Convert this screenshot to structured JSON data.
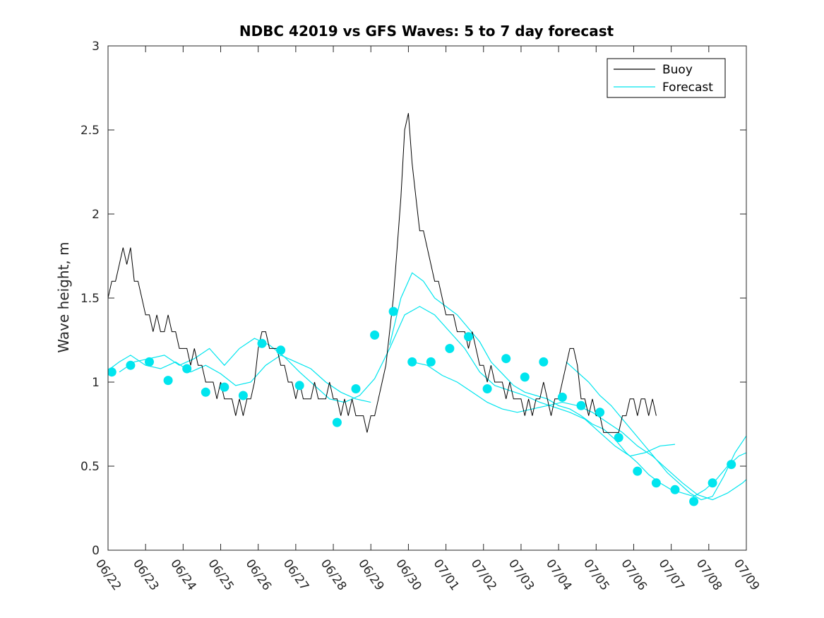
{
  "chart_data": {
    "type": "line",
    "title": "NDBC 42019 vs GFS Waves: 5 to 7 day forecast",
    "xlabel": "",
    "ylabel": "Wave height, m",
    "xlim": [
      "06/22",
      "07/09"
    ],
    "ylim": [
      0,
      3
    ],
    "x_tick_labels": [
      "06/22",
      "06/23",
      "06/24",
      "06/25",
      "06/26",
      "06/27",
      "06/28",
      "06/29",
      "06/30",
      "07/01",
      "07/02",
      "07/03",
      "07/04",
      "07/05",
      "07/06",
      "07/07",
      "07/08",
      "07/09"
    ],
    "y_tick_labels": [
      "0",
      "0.5",
      "1",
      "1.5",
      "2",
      "2.5",
      "3"
    ],
    "y_ticks": [
      0,
      0.5,
      1,
      1.5,
      2,
      2.5,
      3
    ],
    "grid": false,
    "legend": {
      "placement": "top-right",
      "entries": [
        {
          "label": "Buoy",
          "color": "#000000"
        },
        {
          "label": "Forecast",
          "color": "#00e5ee"
        }
      ]
    },
    "colors": {
      "buoy": "#000000",
      "forecast": "#00e5ee",
      "axes": "#262626"
    },
    "buoy": {
      "name": "Buoy",
      "points": [
        [
          0.0,
          1.5
        ],
        [
          0.1,
          1.6
        ],
        [
          0.2,
          1.6
        ],
        [
          0.3,
          1.7
        ],
        [
          0.4,
          1.8
        ],
        [
          0.5,
          1.7
        ],
        [
          0.6,
          1.8
        ],
        [
          0.7,
          1.6
        ],
        [
          0.8,
          1.6
        ],
        [
          0.9,
          1.5
        ],
        [
          1.0,
          1.4
        ],
        [
          1.1,
          1.4
        ],
        [
          1.2,
          1.3
        ],
        [
          1.3,
          1.4
        ],
        [
          1.4,
          1.3
        ],
        [
          1.5,
          1.3
        ],
        [
          1.6,
          1.4
        ],
        [
          1.7,
          1.3
        ],
        [
          1.8,
          1.3
        ],
        [
          1.9,
          1.2
        ],
        [
          2.0,
          1.2
        ],
        [
          2.1,
          1.2
        ],
        [
          2.2,
          1.1
        ],
        [
          2.3,
          1.2
        ],
        [
          2.4,
          1.1
        ],
        [
          2.5,
          1.1
        ],
        [
          2.6,
          1.0
        ],
        [
          2.7,
          1.0
        ],
        [
          2.8,
          1.0
        ],
        [
          2.9,
          0.9
        ],
        [
          3.0,
          1.0
        ],
        [
          3.1,
          0.9
        ],
        [
          3.2,
          0.9
        ],
        [
          3.3,
          0.9
        ],
        [
          3.4,
          0.8
        ],
        [
          3.5,
          0.9
        ],
        [
          3.6,
          0.8
        ],
        [
          3.7,
          0.9
        ],
        [
          3.8,
          0.9
        ],
        [
          3.9,
          1.0
        ],
        [
          4.0,
          1.2
        ],
        [
          4.1,
          1.3
        ],
        [
          4.2,
          1.3
        ],
        [
          4.3,
          1.2
        ],
        [
          4.4,
          1.2
        ],
        [
          4.5,
          1.2
        ],
        [
          4.6,
          1.1
        ],
        [
          4.7,
          1.1
        ],
        [
          4.8,
          1.0
        ],
        [
          4.9,
          1.0
        ],
        [
          5.0,
          0.9
        ],
        [
          5.1,
          1.0
        ],
        [
          5.2,
          0.9
        ],
        [
          5.3,
          0.9
        ],
        [
          5.4,
          0.9
        ],
        [
          5.5,
          1.0
        ],
        [
          5.6,
          0.9
        ],
        [
          5.7,
          0.9
        ],
        [
          5.8,
          0.9
        ],
        [
          5.9,
          1.0
        ],
        [
          6.0,
          0.9
        ],
        [
          6.1,
          0.9
        ],
        [
          6.2,
          0.8
        ],
        [
          6.3,
          0.9
        ],
        [
          6.4,
          0.8
        ],
        [
          6.5,
          0.9
        ],
        [
          6.6,
          0.8
        ],
        [
          6.7,
          0.8
        ],
        [
          6.8,
          0.8
        ],
        [
          6.9,
          0.7
        ],
        [
          7.0,
          0.8
        ],
        [
          7.1,
          0.8
        ],
        [
          7.2,
          0.9
        ],
        [
          7.3,
          1.0
        ],
        [
          7.4,
          1.1
        ],
        [
          7.5,
          1.3
        ],
        [
          7.6,
          1.5
        ],
        [
          7.7,
          1.8
        ],
        [
          7.8,
          2.1
        ],
        [
          7.9,
          2.5
        ],
        [
          8.0,
          2.6
        ],
        [
          8.1,
          2.3
        ],
        [
          8.2,
          2.1
        ],
        [
          8.3,
          1.9
        ],
        [
          8.4,
          1.9
        ],
        [
          8.5,
          1.8
        ],
        [
          8.6,
          1.7
        ],
        [
          8.7,
          1.6
        ],
        [
          8.8,
          1.6
        ],
        [
          8.9,
          1.5
        ],
        [
          9.0,
          1.4
        ],
        [
          9.1,
          1.4
        ],
        [
          9.2,
          1.4
        ],
        [
          9.3,
          1.3
        ],
        [
          9.4,
          1.3
        ],
        [
          9.5,
          1.3
        ],
        [
          9.6,
          1.2
        ],
        [
          9.7,
          1.3
        ],
        [
          9.8,
          1.2
        ],
        [
          9.9,
          1.1
        ],
        [
          10.0,
          1.1
        ],
        [
          10.1,
          1.0
        ],
        [
          10.2,
          1.1
        ],
        [
          10.3,
          1.0
        ],
        [
          10.4,
          1.0
        ],
        [
          10.5,
          1.0
        ],
        [
          10.6,
          0.9
        ],
        [
          10.7,
          1.0
        ],
        [
          10.8,
          0.9
        ],
        [
          10.9,
          0.9
        ],
        [
          11.0,
          0.9
        ],
        [
          11.1,
          0.8
        ],
        [
          11.2,
          0.9
        ],
        [
          11.3,
          0.8
        ],
        [
          11.4,
          0.9
        ],
        [
          11.5,
          0.9
        ],
        [
          11.6,
          1.0
        ],
        [
          11.7,
          0.9
        ],
        [
          11.8,
          0.8
        ],
        [
          11.9,
          0.9
        ],
        [
          12.0,
          0.9
        ],
        [
          12.1,
          1.0
        ],
        [
          12.2,
          1.1
        ],
        [
          12.3,
          1.2
        ],
        [
          12.4,
          1.2
        ],
        [
          12.5,
          1.1
        ],
        [
          12.6,
          0.9
        ],
        [
          12.7,
          0.9
        ],
        [
          12.8,
          0.8
        ],
        [
          12.9,
          0.9
        ],
        [
          13.0,
          0.8
        ],
        [
          13.1,
          0.8
        ],
        [
          13.2,
          0.7
        ],
        [
          13.3,
          0.7
        ],
        [
          13.4,
          0.7
        ],
        [
          13.5,
          0.7
        ],
        [
          13.6,
          0.7
        ],
        [
          13.7,
          0.8
        ],
        [
          13.8,
          0.8
        ],
        [
          13.9,
          0.9
        ],
        [
          14.0,
          0.9
        ],
        [
          14.1,
          0.8
        ],
        [
          14.2,
          0.9
        ],
        [
          14.3,
          0.9
        ],
        [
          14.4,
          0.8
        ],
        [
          14.5,
          0.9
        ],
        [
          14.6,
          0.8
        ]
      ]
    },
    "forecast_series": [
      {
        "name": "Forecast",
        "points": [
          [
            0,
            1.07
          ],
          [
            0.3,
            1.12
          ],
          [
            0.6,
            1.16
          ],
          [
            1.0,
            1.1
          ],
          [
            1.4,
            1.08
          ],
          [
            1.8,
            1.12
          ],
          [
            2.2,
            1.06
          ],
          [
            2.6,
            1.1
          ],
          [
            3.0,
            1.05
          ],
          [
            3.4,
            0.98
          ],
          [
            3.8,
            1.0
          ],
          [
            4.2,
            1.1
          ],
          [
            4.6,
            1.16
          ],
          [
            5.0,
            1.12
          ],
          [
            5.4,
            1.08
          ],
          [
            5.8,
            1.0
          ],
          [
            6.2,
            0.94
          ],
          [
            6.6,
            0.9
          ],
          [
            7.0,
            0.88
          ]
        ]
      },
      {
        "name": "Forecast",
        "points": [
          [
            0.3,
            1.06
          ],
          [
            0.7,
            1.12
          ],
          [
            1.1,
            1.14
          ],
          [
            1.5,
            1.16
          ],
          [
            1.9,
            1.1
          ],
          [
            2.3,
            1.14
          ],
          [
            2.7,
            1.2
          ],
          [
            3.1,
            1.1
          ],
          [
            3.5,
            1.2
          ],
          [
            3.9,
            1.26
          ],
          [
            4.3,
            1.22
          ],
          [
            4.7,
            1.15
          ],
          [
            5.1,
            1.06
          ],
          [
            5.5,
            0.98
          ],
          [
            5.9,
            0.9
          ],
          [
            6.3,
            0.88
          ],
          [
            6.7,
            0.92
          ],
          [
            7.1,
            1.02
          ],
          [
            7.5,
            1.2
          ],
          [
            7.9,
            1.4
          ],
          [
            8.3,
            1.45
          ],
          [
            8.7,
            1.4
          ],
          [
            9.1,
            1.3
          ],
          [
            9.5,
            1.2
          ],
          [
            9.9,
            1.06
          ],
          [
            10.3,
            0.98
          ],
          [
            10.7,
            0.95
          ],
          [
            11.1,
            0.92
          ],
          [
            11.5,
            0.88
          ],
          [
            11.9,
            0.85
          ],
          [
            12.3,
            0.82
          ],
          [
            12.7,
            0.78
          ],
          [
            13.1,
            0.7
          ],
          [
            13.5,
            0.62
          ],
          [
            13.9,
            0.56
          ],
          [
            14.3,
            0.58
          ],
          [
            14.7,
            0.62
          ],
          [
            15.1,
            0.63
          ]
        ]
      },
      {
        "name": "Forecast",
        "points": [
          [
            7.5,
            1.22
          ],
          [
            7.8,
            1.5
          ],
          [
            8.1,
            1.65
          ],
          [
            8.4,
            1.6
          ],
          [
            8.7,
            1.5
          ],
          [
            9.0,
            1.45
          ],
          [
            9.3,
            1.4
          ],
          [
            9.6,
            1.32
          ],
          [
            9.9,
            1.24
          ],
          [
            10.2,
            1.12
          ],
          [
            10.5,
            1.05
          ],
          [
            10.8,
            0.98
          ],
          [
            11.1,
            0.94
          ],
          [
            11.4,
            0.92
          ],
          [
            11.7,
            0.9
          ],
          [
            12.0,
            0.86
          ],
          [
            12.3,
            0.84
          ],
          [
            12.6,
            0.8
          ],
          [
            12.9,
            0.75
          ],
          [
            13.2,
            0.72
          ],
          [
            13.5,
            0.66
          ],
          [
            13.8,
            0.58
          ],
          [
            14.1,
            0.52
          ],
          [
            14.4,
            0.45
          ],
          [
            14.7,
            0.4
          ],
          [
            15.0,
            0.36
          ],
          [
            15.3,
            0.34
          ],
          [
            15.6,
            0.32
          ],
          [
            15.9,
            0.36
          ],
          [
            16.2,
            0.42
          ],
          [
            16.5,
            0.5
          ],
          [
            16.8,
            0.56
          ],
          [
            17.0,
            0.58
          ]
        ]
      },
      {
        "name": "Forecast",
        "points": [
          [
            8.1,
            1.12
          ],
          [
            8.5,
            1.1
          ],
          [
            8.9,
            1.04
          ],
          [
            9.3,
            1.0
          ],
          [
            9.7,
            0.94
          ],
          [
            10.1,
            0.88
          ],
          [
            10.5,
            0.84
          ],
          [
            10.9,
            0.82
          ],
          [
            11.3,
            0.84
          ],
          [
            11.7,
            0.86
          ],
          [
            12.1,
            0.88
          ],
          [
            12.5,
            0.86
          ],
          [
            12.9,
            0.82
          ],
          [
            13.3,
            0.76
          ],
          [
            13.7,
            0.7
          ],
          [
            14.1,
            0.62
          ],
          [
            14.5,
            0.56
          ],
          [
            14.9,
            0.48
          ],
          [
            15.3,
            0.4
          ],
          [
            15.7,
            0.33
          ],
          [
            16.1,
            0.3
          ],
          [
            16.5,
            0.34
          ],
          [
            16.9,
            0.4
          ],
          [
            17.0,
            0.42
          ]
        ]
      },
      {
        "name": "Forecast",
        "points": [
          [
            12.2,
            1.12
          ],
          [
            12.5,
            1.06
          ],
          [
            12.8,
            1.0
          ],
          [
            13.1,
            0.92
          ],
          [
            13.4,
            0.86
          ],
          [
            13.7,
            0.78
          ],
          [
            14.0,
            0.7
          ],
          [
            14.3,
            0.62
          ],
          [
            14.6,
            0.54
          ],
          [
            14.9,
            0.46
          ],
          [
            15.2,
            0.4
          ],
          [
            15.5,
            0.34
          ],
          [
            15.8,
            0.3
          ],
          [
            16.1,
            0.32
          ],
          [
            16.4,
            0.44
          ],
          [
            16.7,
            0.58
          ],
          [
            17.0,
            0.68
          ]
        ]
      }
    ],
    "forecast_markers": [
      [
        0.1,
        1.06
      ],
      [
        0.6,
        1.1
      ],
      [
        1.1,
        1.12
      ],
      [
        1.6,
        1.01
      ],
      [
        2.1,
        1.08
      ],
      [
        2.6,
        0.94
      ],
      [
        3.1,
        0.97
      ],
      [
        3.6,
        0.92
      ],
      [
        4.1,
        1.23
      ],
      [
        4.6,
        1.19
      ],
      [
        5.1,
        0.98
      ],
      [
        6.1,
        0.76
      ],
      [
        6.6,
        0.96
      ],
      [
        7.1,
        1.28
      ],
      [
        7.6,
        1.42
      ],
      [
        8.1,
        1.12
      ],
      [
        8.6,
        1.12
      ],
      [
        9.1,
        1.2
      ],
      [
        9.6,
        1.27
      ],
      [
        10.1,
        0.96
      ],
      [
        10.6,
        1.14
      ],
      [
        11.1,
        1.03
      ],
      [
        11.6,
        1.12
      ],
      [
        12.1,
        0.91
      ],
      [
        12.6,
        0.86
      ],
      [
        13.1,
        0.82
      ],
      [
        13.6,
        0.67
      ],
      [
        14.1,
        0.47
      ],
      [
        14.6,
        0.4
      ],
      [
        15.1,
        0.36
      ],
      [
        15.6,
        0.29
      ],
      [
        16.1,
        0.4
      ],
      [
        16.6,
        0.51
      ]
    ]
  }
}
